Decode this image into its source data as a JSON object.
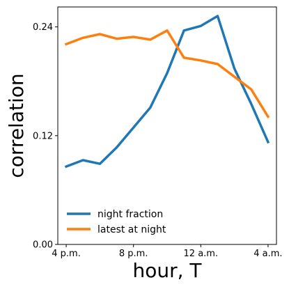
{
  "chart_data": {
    "type": "line",
    "xlabel": "hour, T",
    "ylabel": "correlation",
    "x": [
      16,
      17,
      18,
      19,
      20,
      21,
      22,
      23,
      24,
      25,
      26,
      27,
      28
    ],
    "xlim": [
      15.5,
      28.5
    ],
    "ylim": [
      0.0,
      0.262
    ],
    "xticks": [
      {
        "value": 16,
        "label": "4 p.m."
      },
      {
        "value": 20,
        "label": "8 p.m."
      },
      {
        "value": 24,
        "label": "12 a.m."
      },
      {
        "value": 28,
        "label": "4 a.m."
      }
    ],
    "yticks": [
      {
        "value": 0.0,
        "label": "0.00"
      },
      {
        "value": 0.12,
        "label": "0.12"
      },
      {
        "value": 0.24,
        "label": "0.24"
      }
    ],
    "grid": false,
    "legend_position": "lower-left",
    "series": [
      {
        "name": "night fraction",
        "color": "#1f77b4",
        "values": [
          0.086,
          0.093,
          0.089,
          0.107,
          0.129,
          0.151,
          0.189,
          0.236,
          0.241,
          0.252,
          0.194,
          0.155,
          0.113
        ]
      },
      {
        "name": "latest at night",
        "color": "#ff7f0e",
        "values": [
          0.221,
          0.228,
          0.232,
          0.227,
          0.229,
          0.226,
          0.236,
          0.206,
          0.203,
          0.199,
          0.185,
          0.171,
          0.141
        ]
      }
    ]
  }
}
